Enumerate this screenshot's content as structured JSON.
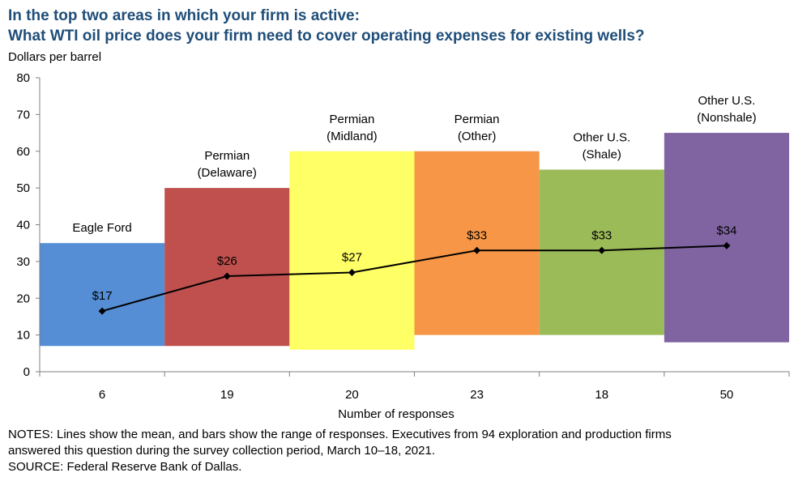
{
  "title_line1": "In the top two areas in which your firm is active:",
  "title_line2": "What WTI oil price does your firm need to cover operating expenses for existing wells?",
  "notes_line1": "NOTES: Lines show the mean, and bars show the range of responses. Executives from 94 exploration and production firms",
  "notes_line2": "answered this question during the survey collection period, March 10–18, 2021.",
  "source": "SOURCE: Federal Reserve Bank of Dallas.",
  "chart_data": {
    "type": "bar",
    "subtype": "range-bars-with-mean-line",
    "ylabel": "Dollars per barrel",
    "xlabel": "Number of responses",
    "ylim": [
      0,
      80
    ],
    "yticks": [
      0,
      10,
      20,
      30,
      40,
      50,
      60,
      70,
      80
    ],
    "grid": false,
    "categories": [
      {
        "area": [
          "Eagle Ford"
        ],
        "responses": "6",
        "low": 7,
        "high": 35,
        "mean": 16.5,
        "mean_label": "$17",
        "color": "#558ed5"
      },
      {
        "area": [
          "Permian",
          "(Delaware)"
        ],
        "responses": "19",
        "low": 7,
        "high": 50,
        "mean": 26,
        "mean_label": "$26",
        "color": "#c0504d"
      },
      {
        "area": [
          "Permian",
          "(Midland)"
        ],
        "responses": "20",
        "low": 6,
        "high": 60,
        "mean": 27,
        "mean_label": "$27",
        "color": "#ffff66"
      },
      {
        "area": [
          "Permian",
          "(Other)"
        ],
        "responses": "23",
        "low": 10,
        "high": 60,
        "mean": 33,
        "mean_label": "$33",
        "color": "#f79646"
      },
      {
        "area": [
          "Other U.S.",
          "(Shale)"
        ],
        "responses": "18",
        "low": 10,
        "high": 55,
        "mean": 33,
        "mean_label": "$33",
        "color": "#9bbb59"
      },
      {
        "area": [
          "Other U.S.",
          "(Nonshale)"
        ],
        "responses": "50",
        "low": 8,
        "high": 65,
        "mean": 34.3,
        "mean_label": "$34",
        "color": "#8064a2"
      }
    ],
    "mean_line_color": "#000000"
  }
}
